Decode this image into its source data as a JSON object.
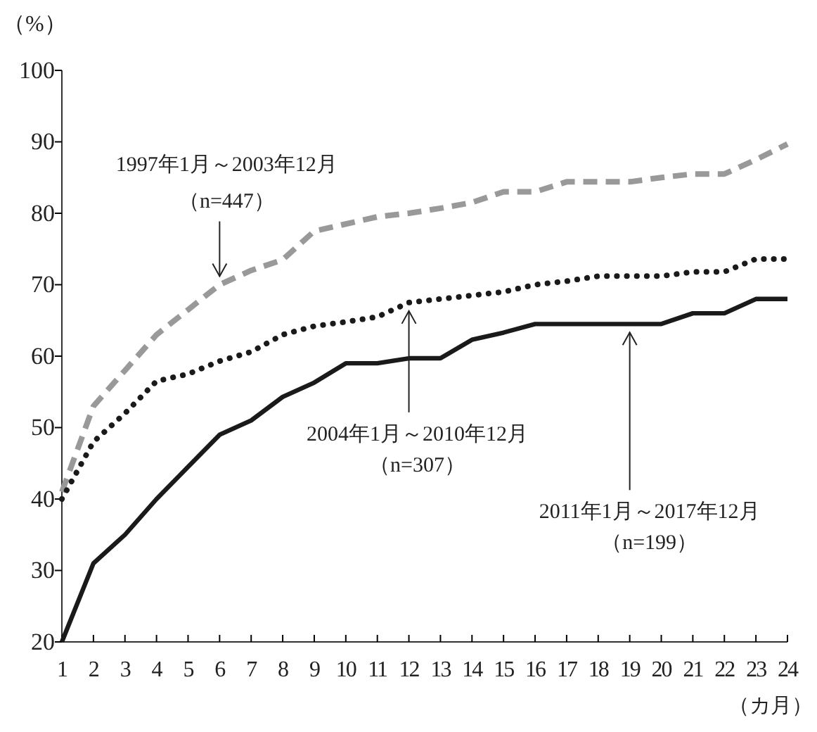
{
  "chart_data": {
    "type": "line",
    "xlabel": "（カ月）",
    "ylabel": "（%）",
    "x": [
      1,
      2,
      3,
      4,
      5,
      6,
      7,
      8,
      9,
      10,
      11,
      12,
      13,
      14,
      15,
      16,
      17,
      18,
      19,
      20,
      21,
      22,
      23,
      24
    ],
    "xlim": [
      1,
      24
    ],
    "xticks": [
      1,
      2,
      3,
      4,
      5,
      6,
      7,
      8,
      9,
      10,
      11,
      12,
      13,
      14,
      15,
      16,
      17,
      18,
      19,
      20,
      21,
      22,
      23,
      24
    ],
    "ylim": [
      20,
      100
    ],
    "yticks": [
      20,
      30,
      40,
      50,
      60,
      70,
      80,
      90,
      100
    ],
    "grid": false,
    "marker": "none",
    "series": [
      {
        "color": "#999999",
        "line_style": "dashed",
        "values": [
          41,
          53,
          58,
          63,
          66.5,
          70,
          72,
          73.5,
          77.5,
          78.5,
          79.5,
          80,
          80.7,
          81.5,
          83,
          83,
          84.4,
          84.4,
          84.4,
          85,
          85.5,
          85.5,
          87.5,
          89.7
        ]
      },
      {
        "color": "#1a1a1a",
        "line_style": "dotted",
        "values": [
          40,
          48,
          52,
          56.5,
          57.5,
          59.3,
          60.6,
          63,
          64.2,
          64.8,
          65.5,
          67.5,
          68,
          68.5,
          69,
          70,
          70.5,
          71.2,
          71.2,
          71.2,
          71.8,
          71.8,
          73.6,
          73.6
        ]
      },
      {
        "color": "#1a1a1a",
        "line_style": "solid",
        "values": [
          20,
          31,
          35,
          40,
          44.5,
          49,
          51,
          54.3,
          56.3,
          59,
          59,
          59.7,
          59.7,
          62.3,
          63.3,
          64.5,
          64.5,
          64.5,
          64.5,
          64.5,
          66,
          66,
          68,
          68
        ]
      }
    ],
    "annotations": [
      "1997年1月～2003年12月",
      {
        "text": "（n=447）",
        "x": 6,
        "y": 70
      },
      {
        "text": "2004年1月～2010年12月",
        "x": 12,
        "y": 67.5
      },
      "（n=307）",
      {
        "text": "2011年1月～2017年12月",
        "x": 19,
        "y": 64.5
      },
      "（n=199）"
    ]
  }
}
